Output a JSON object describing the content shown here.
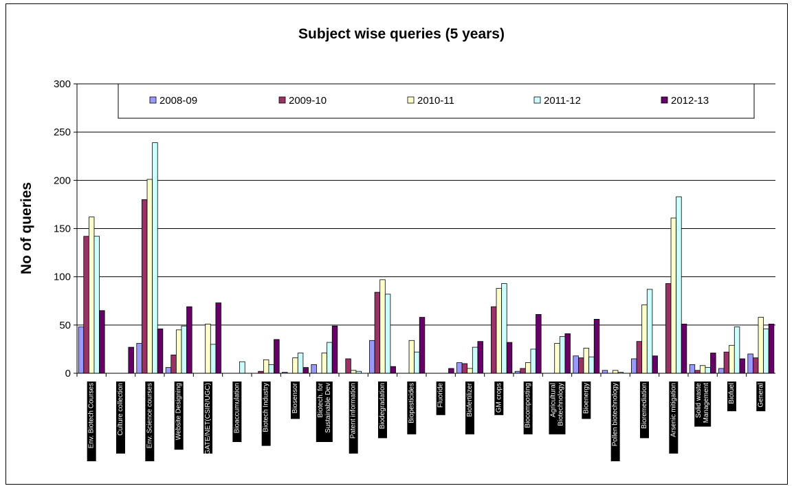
{
  "chart_data": {
    "type": "bar",
    "title": "Subject wise queries (5 years)",
    "ylabel": "No of queries",
    "xlabel": "",
    "ylim": [
      0,
      300
    ],
    "yticks": [
      0,
      50,
      100,
      150,
      200,
      250,
      300
    ],
    "grid": true,
    "legend_position": "top",
    "categories": [
      "Env. Biotech Courses",
      "Culture collection",
      "Env. Science courses",
      "Website Designing",
      "GATE/NET(CSIR/UGC)",
      "Bioaccumulation",
      "Biotech Industry",
      "Biosensor",
      "Biotech. for Sustainable Dev",
      "Patent information",
      "Biodegradation",
      "Biopesticides",
      "Fluoride",
      "Biofertilizer",
      "GM crops",
      "Biocomposting",
      "Agricultural Biotechnology",
      "Bioenergy",
      "Pollen biotechnology",
      "Bioremediation",
      "Arsenic mitigation",
      "Solid waste Management",
      "Biofuel",
      "General"
    ],
    "series": [
      {
        "name": "2008-09",
        "color": "#9999ff",
        "values": [
          48,
          0,
          31,
          6,
          0,
          0,
          0,
          1,
          9,
          0,
          34,
          0,
          0,
          11,
          0,
          2,
          0,
          18,
          3,
          15,
          0,
          9,
          5,
          20
        ]
      },
      {
        "name": "2009-10",
        "color": "#993366",
        "values": [
          142,
          0,
          180,
          19,
          0,
          0,
          2,
          0,
          0,
          15,
          84,
          0,
          0,
          10,
          69,
          5,
          0,
          16,
          0,
          33,
          93,
          3,
          22,
          16
        ]
      },
      {
        "name": "2010-11",
        "color": "#ffffcc",
        "values": [
          162,
          0,
          201,
          45,
          51,
          0,
          14,
          16,
          21,
          3,
          97,
          34,
          0,
          5,
          88,
          11,
          31,
          26,
          3,
          71,
          161,
          8,
          29,
          58
        ]
      },
      {
        "name": "2011-12",
        "color": "#ccffff",
        "values": [
          142,
          0,
          239,
          49,
          30,
          12,
          9,
          21,
          32,
          2,
          82,
          22,
          0,
          27,
          93,
          25,
          38,
          17,
          1,
          87,
          183,
          6,
          48,
          46
        ]
      },
      {
        "name": "2012-13",
        "color": "#660066",
        "values": [
          65,
          27,
          46,
          69,
          73,
          0,
          35,
          6,
          49,
          0,
          7,
          58,
          5,
          33,
          32,
          61,
          41,
          56,
          0,
          18,
          51,
          21,
          15,
          51
        ]
      }
    ]
  }
}
